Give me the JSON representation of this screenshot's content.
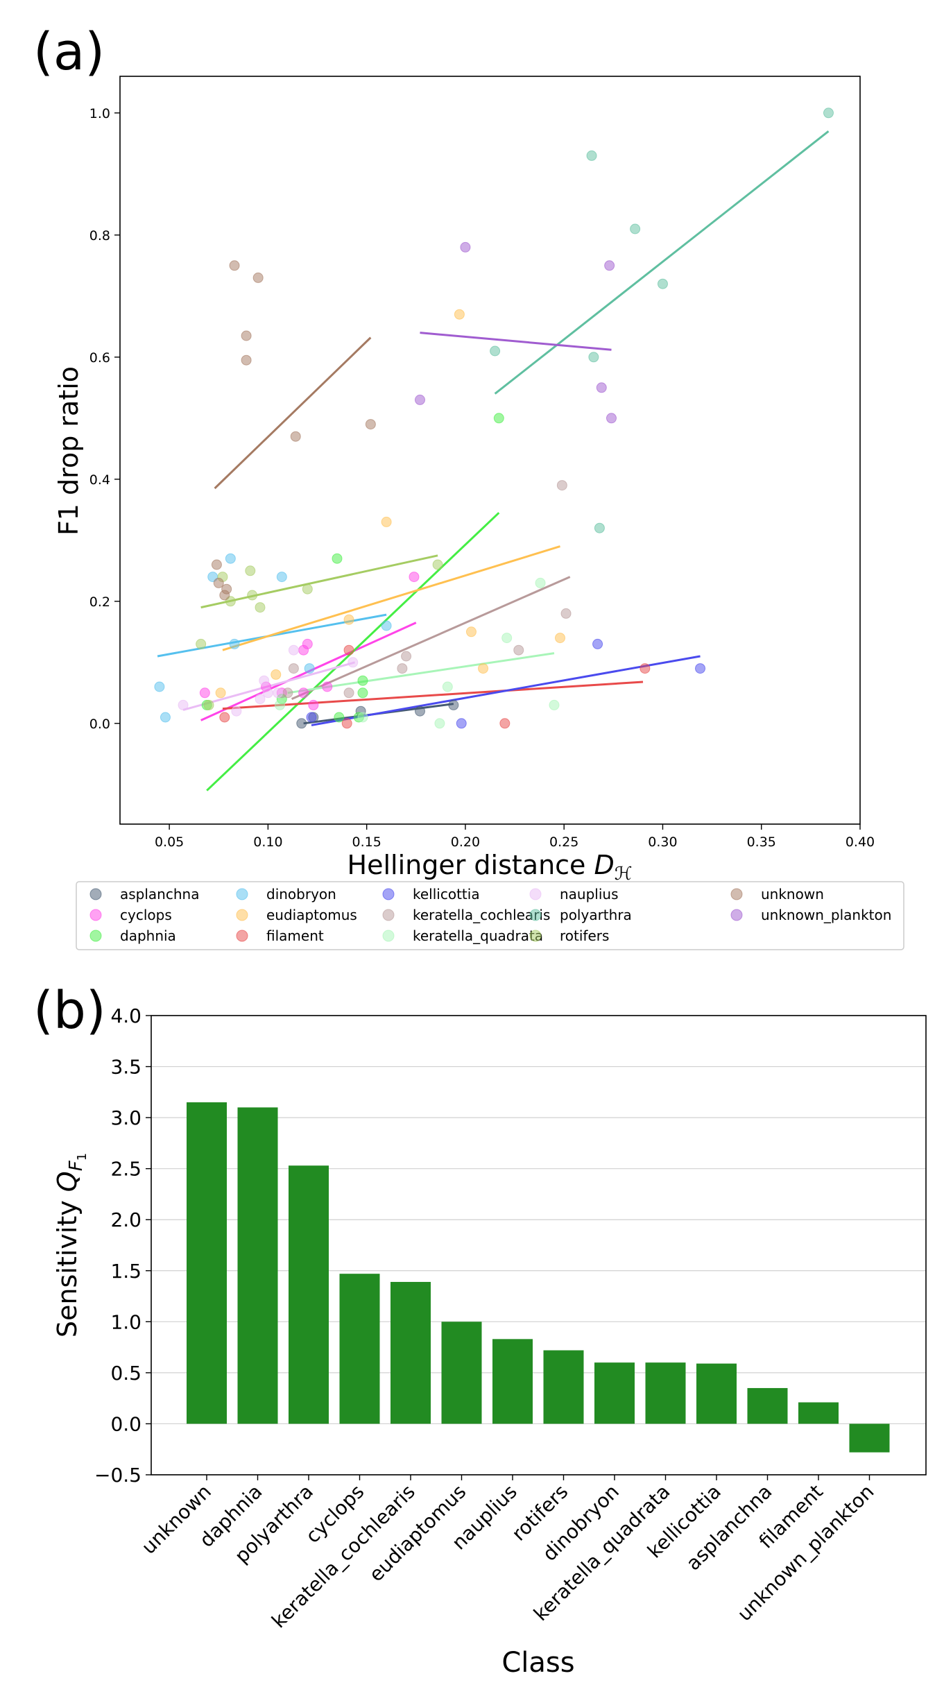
{
  "chart_data": [
    {
      "panel_label": "(a)",
      "type": "scatter",
      "title": "",
      "xlabel_prefix": "Hellinger distance ",
      "xlabel_symbol": "D",
      "xlabel_subscript": "ℋ",
      "ylabel": "F1 drop ratio",
      "xlim": [
        0.025,
        0.4
      ],
      "ylim": [
        -0.165,
        1.06
      ],
      "xticks": [
        "0.05",
        "0.10",
        "0.15",
        "0.20",
        "0.25",
        "0.30",
        "0.35",
        "0.40"
      ],
      "yticks": [
        "0.0",
        "0.2",
        "0.4",
        "0.6",
        "0.8",
        "1.0"
      ],
      "legend_position": "below",
      "series": [
        {
          "name": "asplanchna",
          "color": "#455a72",
          "points": [
            [
              0.117,
              0.0
            ],
            [
              0.123,
              0.01
            ],
            [
              0.147,
              0.02
            ],
            [
              0.177,
              0.02
            ],
            [
              0.194,
              0.03
            ]
          ],
          "fit": [
            [
              0.118,
              0.0
            ],
            [
              0.194,
              0.032
            ]
          ]
        },
        {
          "name": "cyclops",
          "color": "#ff44e8",
          "points": [
            [
              0.068,
              0.05
            ],
            [
              0.099,
              0.06
            ],
            [
              0.107,
              0.05
            ],
            [
              0.118,
              0.12
            ],
            [
              0.12,
              0.13
            ],
            [
              0.123,
              0.03
            ],
            [
              0.13,
              0.06
            ],
            [
              0.174,
              0.24
            ],
            [
              0.118,
              0.05
            ]
          ],
          "fit": [
            [
              0.066,
              0.005
            ],
            [
              0.175,
              0.165
            ]
          ]
        },
        {
          "name": "daphnia",
          "color": "#44ee44",
          "points": [
            [
              0.069,
              0.03
            ],
            [
              0.107,
              0.04
            ],
            [
              0.136,
              0.01
            ],
            [
              0.146,
              0.01
            ],
            [
              0.148,
              0.05
            ],
            [
              0.148,
              0.07
            ],
            [
              0.217,
              0.5
            ],
            [
              0.135,
              0.27
            ]
          ],
          "fit": [
            [
              0.069,
              -0.11
            ],
            [
              0.217,
              0.345
            ]
          ]
        },
        {
          "name": "dinobryon",
          "color": "#55c0ee",
          "points": [
            [
              0.045,
              0.06
            ],
            [
              0.048,
              0.01
            ],
            [
              0.072,
              0.24
            ],
            [
              0.081,
              0.27
            ],
            [
              0.083,
              0.13
            ],
            [
              0.107,
              0.24
            ],
            [
              0.121,
              0.09
            ],
            [
              0.16,
              0.16
            ]
          ],
          "fit": [
            [
              0.044,
              0.11
            ],
            [
              0.16,
              0.178
            ]
          ]
        },
        {
          "name": "eudiaptomus",
          "color": "#ffc050",
          "points": [
            [
              0.076,
              0.05
            ],
            [
              0.104,
              0.08
            ],
            [
              0.141,
              0.17
            ],
            [
              0.16,
              0.33
            ],
            [
              0.197,
              0.67
            ],
            [
              0.203,
              0.15
            ],
            [
              0.209,
              0.09
            ],
            [
              0.248,
              0.14
            ]
          ],
          "fit": [
            [
              0.077,
              0.12
            ],
            [
              0.248,
              0.29
            ]
          ]
        },
        {
          "name": "filament",
          "color": "#e84a4a",
          "points": [
            [
              0.078,
              0.01
            ],
            [
              0.14,
              0.0
            ],
            [
              0.141,
              0.12
            ],
            [
              0.22,
              0.0
            ],
            [
              0.291,
              0.09
            ]
          ],
          "fit": [
            [
              0.077,
              0.024
            ],
            [
              0.29,
              0.068
            ]
          ]
        },
        {
          "name": "kellicottia",
          "color": "#4a4aee",
          "points": [
            [
              0.122,
              0.01
            ],
            [
              0.198,
              0.0
            ],
            [
              0.267,
              0.13
            ],
            [
              0.319,
              0.09
            ]
          ],
          "fit": [
            [
              0.122,
              -0.003
            ],
            [
              0.319,
              0.11
            ]
          ]
        },
        {
          "name": "keratella_cochlearis",
          "color": "#b89a9a",
          "points": [
            [
              0.11,
              0.05
            ],
            [
              0.113,
              0.09
            ],
            [
              0.141,
              0.05
            ],
            [
              0.17,
              0.11
            ],
            [
              0.168,
              0.09
            ],
            [
              0.227,
              0.12
            ],
            [
              0.249,
              0.39
            ],
            [
              0.251,
              0.18
            ]
          ],
          "fit": [
            [
              0.112,
              0.04
            ],
            [
              0.253,
              0.24
            ]
          ]
        },
        {
          "name": "keratella_quadrata",
          "color": "#a8f5b8",
          "points": [
            [
              0.106,
              0.03
            ],
            [
              0.148,
              0.01
            ],
            [
              0.187,
              0.0
            ],
            [
              0.191,
              0.06
            ],
            [
              0.221,
              0.14
            ],
            [
              0.238,
              0.23
            ],
            [
              0.245,
              0.03
            ]
          ],
          "fit": [
            [
              0.11,
              0.05
            ],
            [
              0.245,
              0.115
            ]
          ]
        },
        {
          "name": "nauplius",
          "color": "#eabcf5",
          "points": [
            [
              0.057,
              0.03
            ],
            [
              0.084,
              0.02
            ],
            [
              0.096,
              0.04
            ],
            [
              0.098,
              0.07
            ],
            [
              0.1,
              0.05
            ],
            [
              0.105,
              0.05
            ],
            [
              0.113,
              0.12
            ],
            [
              0.143,
              0.1
            ]
          ],
          "fit": [
            [
              0.057,
              0.022
            ],
            [
              0.144,
              0.1
            ]
          ]
        },
        {
          "name": "polyarthra",
          "color": "#5fbfa0",
          "points": [
            [
              0.215,
              0.61
            ],
            [
              0.264,
              0.93
            ],
            [
              0.265,
              0.6
            ],
            [
              0.268,
              0.32
            ],
            [
              0.286,
              0.81
            ],
            [
              0.3,
              0.72
            ],
            [
              0.384,
              1.0
            ]
          ],
          "fit": [
            [
              0.215,
              0.54
            ],
            [
              0.384,
              0.97
            ]
          ]
        },
        {
          "name": "rotifers",
          "color": "#a5cc62",
          "points": [
            [
              0.066,
              0.13
            ],
            [
              0.07,
              0.03
            ],
            [
              0.077,
              0.24
            ],
            [
              0.081,
              0.2
            ],
            [
              0.091,
              0.25
            ],
            [
              0.092,
              0.21
            ],
            [
              0.096,
              0.19
            ],
            [
              0.12,
              0.22
            ],
            [
              0.186,
              0.26
            ]
          ],
          "fit": [
            [
              0.066,
              0.19
            ],
            [
              0.186,
              0.275
            ]
          ]
        },
        {
          "name": "unknown",
          "color": "#a57a62",
          "points": [
            [
              0.074,
              0.26
            ],
            [
              0.075,
              0.23
            ],
            [
              0.078,
              0.21
            ],
            [
              0.079,
              0.22
            ],
            [
              0.083,
              0.75
            ],
            [
              0.089,
              0.635
            ],
            [
              0.089,
              0.595
            ],
            [
              0.095,
              0.73
            ],
            [
              0.114,
              0.47
            ],
            [
              0.152,
              0.49
            ]
          ],
          "fit": [
            [
              0.073,
              0.385
            ],
            [
              0.152,
              0.632
            ]
          ]
        },
        {
          "name": "unknown_plankton",
          "color": "#a05cd0",
          "points": [
            [
              0.177,
              0.53
            ],
            [
              0.2,
              0.78
            ],
            [
              0.269,
              0.55
            ],
            [
              0.273,
              0.75
            ],
            [
              0.274,
              0.5
            ]
          ],
          "fit": [
            [
              0.177,
              0.64
            ],
            [
              0.274,
              0.612
            ]
          ]
        }
      ]
    },
    {
      "panel_label": "(b)",
      "type": "bar",
      "title": "",
      "xlabel": "Class",
      "ylabel_prefix": "Sensitivity ",
      "ylabel_symbol": "Q",
      "ylabel_subscript": "F",
      "ylabel_subsubscript": "1",
      "ylim": [
        -0.5,
        4.0
      ],
      "yticks": [
        "−0.5",
        "0.0",
        "0.5",
        "1.0",
        "1.5",
        "2.0",
        "2.5",
        "3.0",
        "3.5",
        "4.0"
      ],
      "grid": true,
      "bar_color": "#228b22",
      "categories": [
        "unknown",
        "daphnia",
        "polyarthra",
        "cyclops",
        "keratella_cochlearis",
        "eudiaptomus",
        "nauplius",
        "rotifers",
        "dinobryon",
        "keratella_quadrata",
        "kellicottia",
        "asplanchna",
        "filament",
        "unknown_plankton"
      ],
      "values": [
        3.15,
        3.1,
        2.53,
        1.47,
        1.39,
        1.0,
        0.83,
        0.72,
        0.6,
        0.6,
        0.59,
        0.35,
        0.21,
        -0.28
      ]
    }
  ]
}
